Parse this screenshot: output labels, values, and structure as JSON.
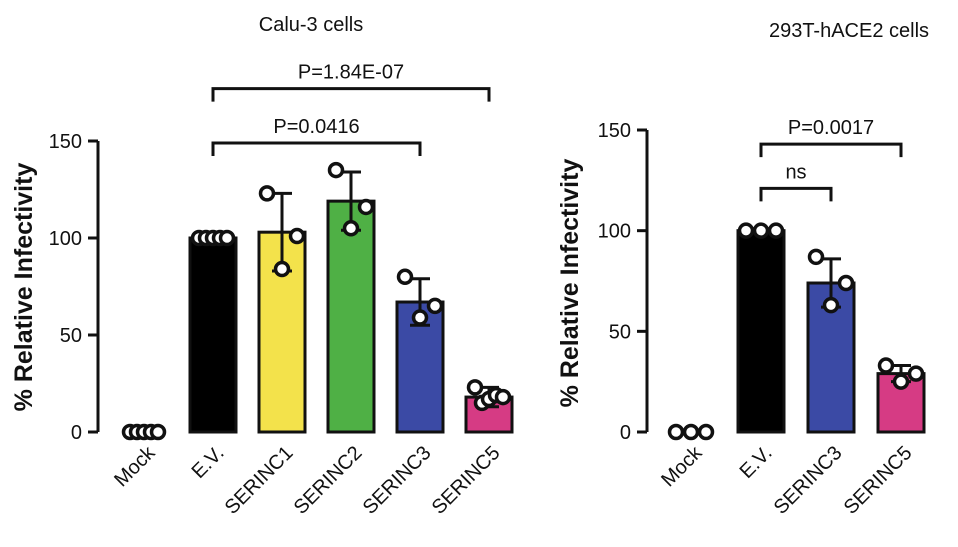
{
  "chart_data": [
    {
      "type": "bar",
      "title": "Calu-3 cells",
      "ylabel": "% Relative Infectivity",
      "ylim": [
        0,
        150
      ],
      "yticks": [
        0,
        50,
        100,
        150
      ],
      "categories": [
        "Mock",
        "E.V.",
        "SERINC1",
        "SERINC2",
        "SERINC3",
        "SERINC5"
      ],
      "values": [
        0,
        100,
        103,
        119,
        67,
        18
      ],
      "errors": [
        0,
        0,
        20,
        15,
        12,
        5
      ],
      "colors": [
        "#ffffff",
        "#000000",
        "#f3e24b",
        "#4fb045",
        "#3b4aa5",
        "#d63b84"
      ],
      "points": [
        [
          0,
          0,
          0,
          0,
          0
        ],
        [
          100,
          100,
          100,
          100,
          100
        ],
        [
          123,
          84,
          101
        ],
        [
          135,
          105,
          116
        ],
        [
          80,
          59,
          65
        ],
        [
          23,
          15,
          17,
          19,
          18
        ]
      ],
      "comparisons": [
        {
          "from": 1,
          "to": 5,
          "label": "P=1.84E-07",
          "y": 177
        },
        {
          "from": 1,
          "to": 4,
          "label": "P=0.0416",
          "y": 149
        }
      ]
    },
    {
      "type": "bar",
      "title": "293T-hACE2 cells",
      "ylabel": "% Relative Infectivity",
      "ylim": [
        0,
        150
      ],
      "yticks": [
        0,
        50,
        100,
        150
      ],
      "categories": [
        "Mock",
        "E.V.",
        "SERINC3",
        "SERINC5"
      ],
      "values": [
        0,
        100,
        74,
        29
      ],
      "errors": [
        0,
        0,
        12,
        4
      ],
      "colors": [
        "#ffffff",
        "#000000",
        "#3b4aa5",
        "#d63b84"
      ],
      "points": [
        [
          0,
          0,
          0
        ],
        [
          100,
          100,
          100
        ],
        [
          87,
          63,
          74
        ],
        [
          33,
          25,
          29
        ]
      ],
      "comparisons": [
        {
          "from": 1,
          "to": 3,
          "label": "P=0.0017",
          "y": 143
        },
        {
          "from": 1,
          "to": 2,
          "label": "ns",
          "y": 121
        }
      ]
    }
  ]
}
